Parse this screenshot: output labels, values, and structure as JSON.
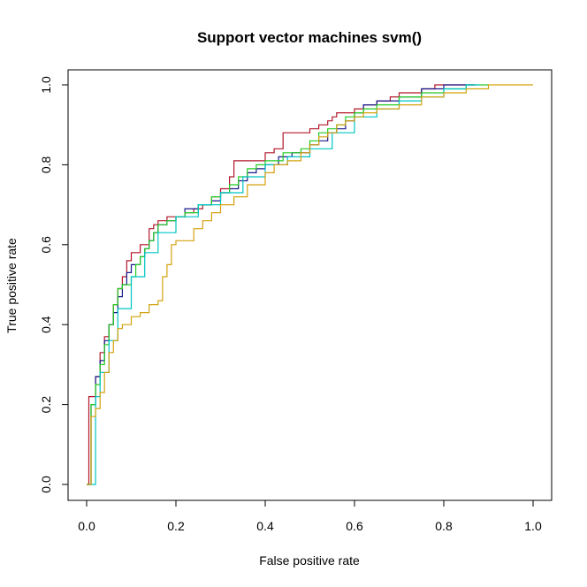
{
  "chart_data": {
    "type": "line",
    "title": "Support vector machines svm()",
    "xlabel": "False positive rate",
    "ylabel": "True positive rate",
    "xlim": [
      0,
      1
    ],
    "ylim": [
      0,
      1
    ],
    "xticks": [
      0,
      0.2,
      0.4,
      0.6,
      0.8,
      1
    ],
    "xtick_labels": [
      "0.0",
      "0.2",
      "0.4",
      "0.6",
      "0.8",
      "1.0"
    ],
    "yticks": [
      0,
      0.2,
      0.4,
      0.6,
      0.8,
      1
    ],
    "ytick_labels": [
      "0.0",
      "0.2",
      "0.4",
      "0.6",
      "0.8",
      "1.0"
    ],
    "grid": false,
    "legend": "none",
    "series": [
      {
        "color": "#b2182b",
        "x": [
          0,
          0.005,
          0.005,
          0.02,
          0.02,
          0.03,
          0.04,
          0.05,
          0.06,
          0.07,
          0.08,
          0.09,
          0.1,
          0.11,
          0.12,
          0.14,
          0.15,
          0.16,
          0.18,
          0.2,
          0.22,
          0.24,
          0.26,
          0.28,
          0.3,
          0.32,
          0.33,
          0.36,
          0.4,
          0.42,
          0.44,
          0.44,
          0.47,
          0.5,
          0.52,
          0.54,
          0.55,
          0.56,
          0.58,
          0.6,
          0.62,
          0.65,
          0.68,
          0.7,
          0.72,
          0.75,
          0.78,
          0.8,
          0.87
        ],
        "y": [
          0,
          0.02,
          0.22,
          0.22,
          0.27,
          0.33,
          0.37,
          0.4,
          0.45,
          0.49,
          0.52,
          0.56,
          0.58,
          0.58,
          0.6,
          0.64,
          0.65,
          0.66,
          0.67,
          0.67,
          0.68,
          0.69,
          0.7,
          0.72,
          0.74,
          0.77,
          0.81,
          0.81,
          0.83,
          0.84,
          0.86,
          0.88,
          0.88,
          0.89,
          0.9,
          0.91,
          0.92,
          0.93,
          0.93,
          0.94,
          0.95,
          0.96,
          0.97,
          0.98,
          0.98,
          0.99,
          1.0,
          1.0,
          1.0
        ]
      },
      {
        "color": "#1a1a8c",
        "x": [
          0,
          0.01,
          0.01,
          0.02,
          0.03,
          0.04,
          0.05,
          0.06,
          0.07,
          0.08,
          0.09,
          0.1,
          0.12,
          0.13,
          0.14,
          0.15,
          0.16,
          0.18,
          0.2,
          0.22,
          0.25,
          0.28,
          0.3,
          0.32,
          0.34,
          0.36,
          0.38,
          0.4,
          0.43,
          0.46,
          0.5,
          0.52,
          0.54,
          0.56,
          0.58,
          0.6,
          0.62,
          0.65,
          0.7,
          0.75,
          0.8,
          0.85,
          0.87
        ],
        "y": [
          0,
          0.05,
          0.2,
          0.27,
          0.31,
          0.36,
          0.4,
          0.43,
          0.47,
          0.5,
          0.53,
          0.55,
          0.57,
          0.59,
          0.61,
          0.63,
          0.65,
          0.66,
          0.67,
          0.69,
          0.7,
          0.71,
          0.73,
          0.74,
          0.76,
          0.78,
          0.79,
          0.8,
          0.82,
          0.83,
          0.85,
          0.86,
          0.88,
          0.89,
          0.91,
          0.93,
          0.95,
          0.96,
          0.97,
          0.99,
          1.0,
          1.0,
          1.0
        ]
      },
      {
        "color": "#22cc22",
        "x": [
          0,
          0.01,
          0.01,
          0.02,
          0.03,
          0.04,
          0.05,
          0.06,
          0.07,
          0.08,
          0.1,
          0.11,
          0.12,
          0.13,
          0.14,
          0.15,
          0.16,
          0.18,
          0.2,
          0.22,
          0.25,
          0.28,
          0.3,
          0.32,
          0.34,
          0.36,
          0.38,
          0.4,
          0.44,
          0.48,
          0.5,
          0.52,
          0.54,
          0.56,
          0.58,
          0.6,
          0.62,
          0.65,
          0.7,
          0.75,
          0.8,
          0.85,
          0.9
        ],
        "y": [
          0,
          0.08,
          0.2,
          0.25,
          0.3,
          0.35,
          0.4,
          0.45,
          0.49,
          0.5,
          0.52,
          0.55,
          0.57,
          0.59,
          0.61,
          0.63,
          0.65,
          0.66,
          0.67,
          0.68,
          0.7,
          0.72,
          0.73,
          0.75,
          0.77,
          0.79,
          0.8,
          0.81,
          0.83,
          0.84,
          0.86,
          0.88,
          0.89,
          0.9,
          0.92,
          0.93,
          0.94,
          0.95,
          0.97,
          0.98,
          0.99,
          1.0,
          1.0
        ]
      },
      {
        "color": "#00c5c5",
        "x": [
          0,
          0.02,
          0.03,
          0.05,
          0.07,
          0.1,
          0.13,
          0.16,
          0.2,
          0.25,
          0.3,
          0.35,
          0.4,
          0.45,
          0.5,
          0.55,
          0.6,
          0.65,
          0.7,
          0.75,
          0.8,
          0.85,
          0.88
        ],
        "y": [
          0,
          0.22,
          0.28,
          0.36,
          0.44,
          0.52,
          0.58,
          0.63,
          0.67,
          0.7,
          0.73,
          0.77,
          0.8,
          0.82,
          0.84,
          0.88,
          0.92,
          0.94,
          0.96,
          0.97,
          0.99,
          1.0,
          1.0
        ]
      },
      {
        "color": "#d4a20f",
        "x": [
          0,
          0.005,
          0.01,
          0.01,
          0.02,
          0.03,
          0.04,
          0.05,
          0.06,
          0.07,
          0.08,
          0.1,
          0.12,
          0.14,
          0.16,
          0.17,
          0.18,
          0.19,
          0.2,
          0.22,
          0.24,
          0.26,
          0.28,
          0.3,
          0.33,
          0.36,
          0.4,
          0.42,
          0.45,
          0.48,
          0.5,
          0.52,
          0.54,
          0.56,
          0.58,
          0.6,
          0.62,
          0.65,
          0.7,
          0.75,
          0.8,
          0.85,
          0.9,
          1.0
        ],
        "y": [
          0,
          0.0,
          0.1,
          0.17,
          0.19,
          0.23,
          0.28,
          0.33,
          0.36,
          0.39,
          0.4,
          0.42,
          0.43,
          0.45,
          0.46,
          0.52,
          0.55,
          0.6,
          0.61,
          0.61,
          0.64,
          0.66,
          0.68,
          0.7,
          0.72,
          0.75,
          0.78,
          0.8,
          0.81,
          0.83,
          0.85,
          0.87,
          0.88,
          0.9,
          0.91,
          0.92,
          0.93,
          0.94,
          0.95,
          0.97,
          0.98,
          0.99,
          1.0,
          1.0
        ]
      }
    ]
  }
}
